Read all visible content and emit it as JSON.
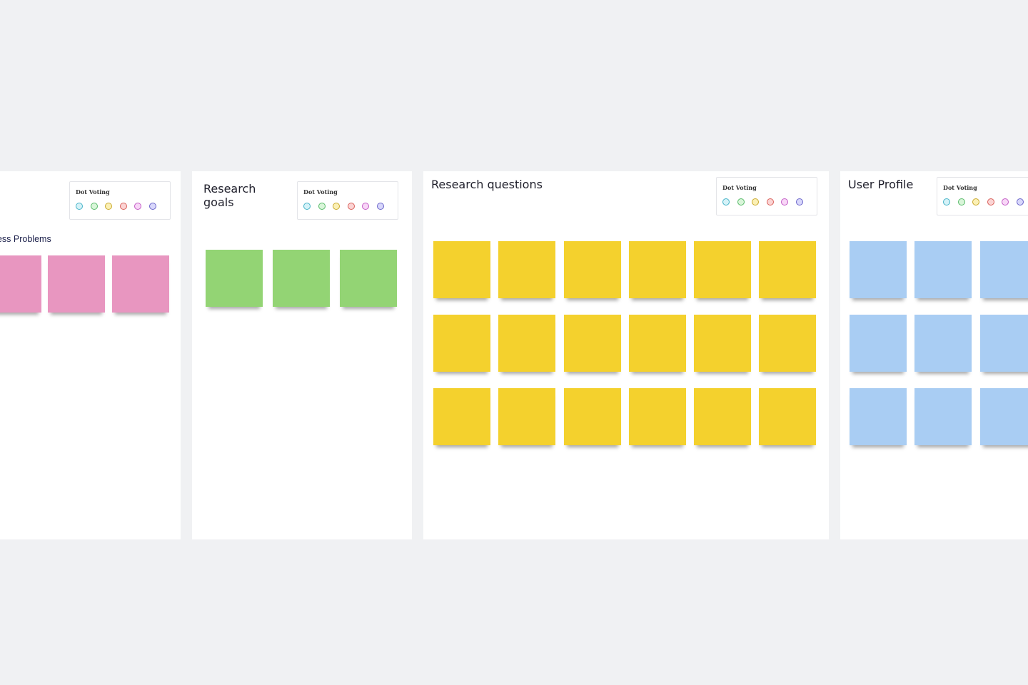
{
  "frames": {
    "business": {
      "subtitle": "siness Problems",
      "voting_label": "Dot Voting",
      "sticky_color": "#e896c0"
    },
    "goals": {
      "title": "Research goals",
      "voting_label": "Dot Voting",
      "sticky_color": "#93d474"
    },
    "questions": {
      "title": "Research questions",
      "voting_label": "Dot Voting",
      "sticky_color": "#f4d12d"
    },
    "profile": {
      "title": "User Profile",
      "voting_label": "Dot Voting",
      "sticky_color": "#a9cdf3"
    }
  },
  "dot_colors": [
    "#45b3c7",
    "#58bb6a",
    "#c9a92d",
    "#d9605a",
    "#c25bc5",
    "#6a64c9"
  ],
  "background_color": "#f0f1f3"
}
